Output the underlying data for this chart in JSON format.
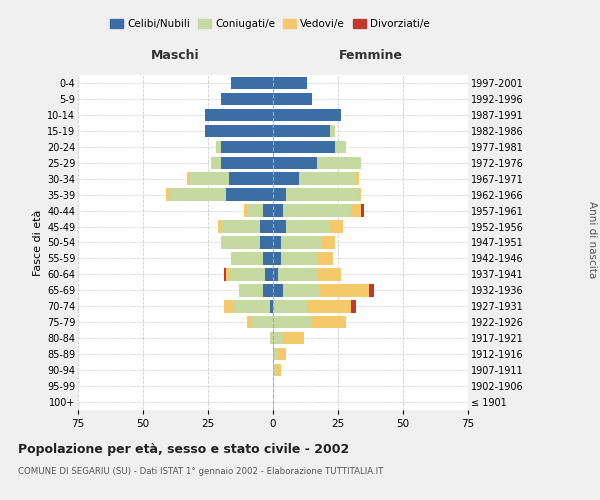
{
  "age_groups": [
    "100+",
    "95-99",
    "90-94",
    "85-89",
    "80-84",
    "75-79",
    "70-74",
    "65-69",
    "60-64",
    "55-59",
    "50-54",
    "45-49",
    "40-44",
    "35-39",
    "30-34",
    "25-29",
    "20-24",
    "15-19",
    "10-14",
    "5-9",
    "0-4"
  ],
  "birth_years": [
    "≤ 1901",
    "1902-1906",
    "1907-1911",
    "1912-1916",
    "1917-1921",
    "1922-1926",
    "1927-1931",
    "1932-1936",
    "1937-1941",
    "1942-1946",
    "1947-1951",
    "1952-1956",
    "1957-1961",
    "1962-1966",
    "1967-1971",
    "1972-1976",
    "1977-1981",
    "1982-1986",
    "1987-1991",
    "1992-1996",
    "1997-2001"
  ],
  "male": {
    "celibi": [
      0,
      0,
      0,
      0,
      0,
      0,
      1,
      4,
      3,
      4,
      5,
      5,
      4,
      18,
      17,
      20,
      20,
      26,
      26,
      20,
      16
    ],
    "coniugati": [
      0,
      0,
      0,
      0,
      1,
      8,
      14,
      9,
      14,
      12,
      15,
      15,
      6,
      22,
      15,
      4,
      2,
      0,
      0,
      0,
      0
    ],
    "vedovi": [
      0,
      0,
      0,
      0,
      0,
      2,
      4,
      0,
      1,
      0,
      0,
      1,
      1,
      1,
      1,
      0,
      0,
      0,
      0,
      0,
      0
    ],
    "divorziati": [
      0,
      0,
      0,
      0,
      0,
      0,
      0,
      0,
      1,
      0,
      0,
      0,
      0,
      0,
      0,
      0,
      0,
      0,
      0,
      0,
      0
    ]
  },
  "female": {
    "nubili": [
      0,
      0,
      0,
      0,
      0,
      0,
      0,
      4,
      2,
      3,
      3,
      5,
      4,
      5,
      10,
      17,
      24,
      22,
      26,
      15,
      13
    ],
    "coniugate": [
      0,
      0,
      1,
      2,
      4,
      15,
      13,
      14,
      15,
      14,
      16,
      17,
      26,
      28,
      22,
      17,
      4,
      2,
      0,
      0,
      0
    ],
    "vedove": [
      0,
      0,
      2,
      3,
      8,
      13,
      17,
      19,
      9,
      6,
      5,
      5,
      4,
      1,
      1,
      0,
      0,
      0,
      0,
      0,
      0
    ],
    "divorziate": [
      0,
      0,
      0,
      0,
      0,
      0,
      2,
      2,
      0,
      0,
      0,
      0,
      1,
      0,
      0,
      0,
      0,
      0,
      0,
      0,
      0
    ]
  },
  "colors": {
    "celibi": "#3a6ea5",
    "coniugati": "#c5d9a0",
    "vedovi": "#f5c96a",
    "divorziati": "#c0392b"
  },
  "xlim": 75,
  "title": "Popolazione per età, sesso e stato civile - 2002",
  "subtitle": "COMUNE DI SEGARIU (SU) - Dati ISTAT 1° gennaio 2002 - Elaborazione TUTTITALIA.IT",
  "ylabel_left": "Fasce di età",
  "ylabel_right": "Anni di nascita",
  "xlabel_left": "Maschi",
  "xlabel_right": "Femmine",
  "bg_color": "#f0f0f0",
  "plot_bg": "#ffffff"
}
